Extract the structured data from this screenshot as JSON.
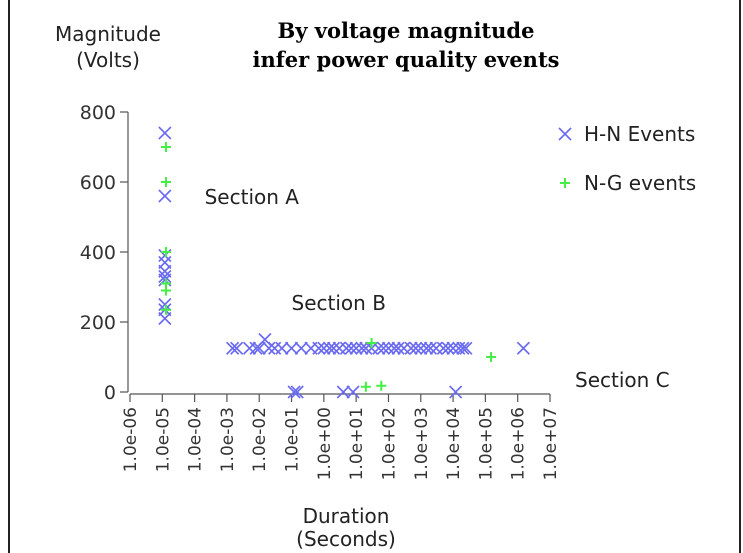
{
  "chart_data": {
    "type": "scatter",
    "title_line1": "By voltage magnitude",
    "title_line2": "infer power quality events",
    "ylabel_line1": "Magnitude",
    "ylabel_line2": "(Volts)",
    "xlabel_line1": "Duration",
    "xlabel_line2": "(Seconds)",
    "x_scale": "log",
    "xlim": [
      1e-06,
      10000000.0
    ],
    "ylim": [
      0,
      800
    ],
    "x_ticks": [
      "1.0e-06",
      "1.0e-05",
      "1.0e-04",
      "1.0e-03",
      "1.0e-02",
      "1.0e-01",
      "1.0e+00",
      "1.0e+01",
      "1.0e+02",
      "1.0e+03",
      "1.0e+04",
      "1.0e+05",
      "1.0e+06",
      "1.0e+07"
    ],
    "y_ticks": [
      "800",
      "600",
      "400",
      "200",
      "0"
    ],
    "grid": false,
    "legend_position": "top-right",
    "annotations": [
      {
        "text": "Section A",
        "x": 0.0001,
        "y": 560
      },
      {
        "text": "Section B",
        "x": 0.1,
        "y": 235
      },
      {
        "text": "Section C",
        "x": 10000000.0,
        "y": 15
      }
    ],
    "series": [
      {
        "name": "H-N Events",
        "marker": "x",
        "color": "#6a6af0",
        "points": [
          [
            1.2e-05,
            740
          ],
          [
            1.2e-05,
            560
          ],
          [
            1.2e-05,
            390
          ],
          [
            1.2e-05,
            370
          ],
          [
            1.2e-05,
            345
          ],
          [
            1.2e-05,
            330
          ],
          [
            1.2e-05,
            320
          ],
          [
            1.2e-05,
            250
          ],
          [
            1.2e-05,
            235
          ],
          [
            1.2e-05,
            210
          ],
          [
            0.0015,
            125
          ],
          [
            0.002,
            125
          ],
          [
            0.005,
            125
          ],
          [
            0.008,
            125
          ],
          [
            0.01,
            125
          ],
          [
            0.015,
            150
          ],
          [
            0.02,
            125
          ],
          [
            0.03,
            125
          ],
          [
            0.05,
            125
          ],
          [
            0.1,
            125
          ],
          [
            0.2,
            125
          ],
          [
            0.4,
            125
          ],
          [
            0.7,
            125
          ],
          [
            1,
            125
          ],
          [
            1.5,
            125
          ],
          [
            2,
            125
          ],
          [
            3,
            125
          ],
          [
            5,
            125
          ],
          [
            7,
            125
          ],
          [
            10,
            125
          ],
          [
            15,
            125
          ],
          [
            20,
            125
          ],
          [
            30,
            125
          ],
          [
            50,
            125
          ],
          [
            70,
            125
          ],
          [
            100,
            125
          ],
          [
            150,
            125
          ],
          [
            200,
            125
          ],
          [
            300,
            125
          ],
          [
            500,
            125
          ],
          [
            700,
            125
          ],
          [
            1000,
            125
          ],
          [
            1500,
            125
          ],
          [
            2000,
            125
          ],
          [
            3000,
            125
          ],
          [
            5000,
            125
          ],
          [
            7000,
            125
          ],
          [
            10000,
            125
          ],
          [
            15000,
            125
          ],
          [
            20000,
            125
          ],
          [
            25000,
            125
          ],
          [
            1500000,
            125
          ],
          [
            0.12,
            0
          ],
          [
            0.15,
            0
          ],
          [
            4,
            0
          ],
          [
            8,
            0
          ],
          [
            12000,
            0
          ]
        ]
      },
      {
        "name": "N-G events",
        "marker": "+",
        "color": "#44ee44",
        "points": [
          [
            1.3e-05,
            700
          ],
          [
            1.3e-05,
            600
          ],
          [
            1.3e-05,
            400
          ],
          [
            1.3e-05,
            310
          ],
          [
            1.3e-05,
            290
          ],
          [
            1.3e-05,
            235
          ],
          [
            30,
            140
          ],
          [
            20,
            15
          ],
          [
            60,
            18
          ],
          [
            150000,
            100
          ]
        ]
      }
    ]
  }
}
